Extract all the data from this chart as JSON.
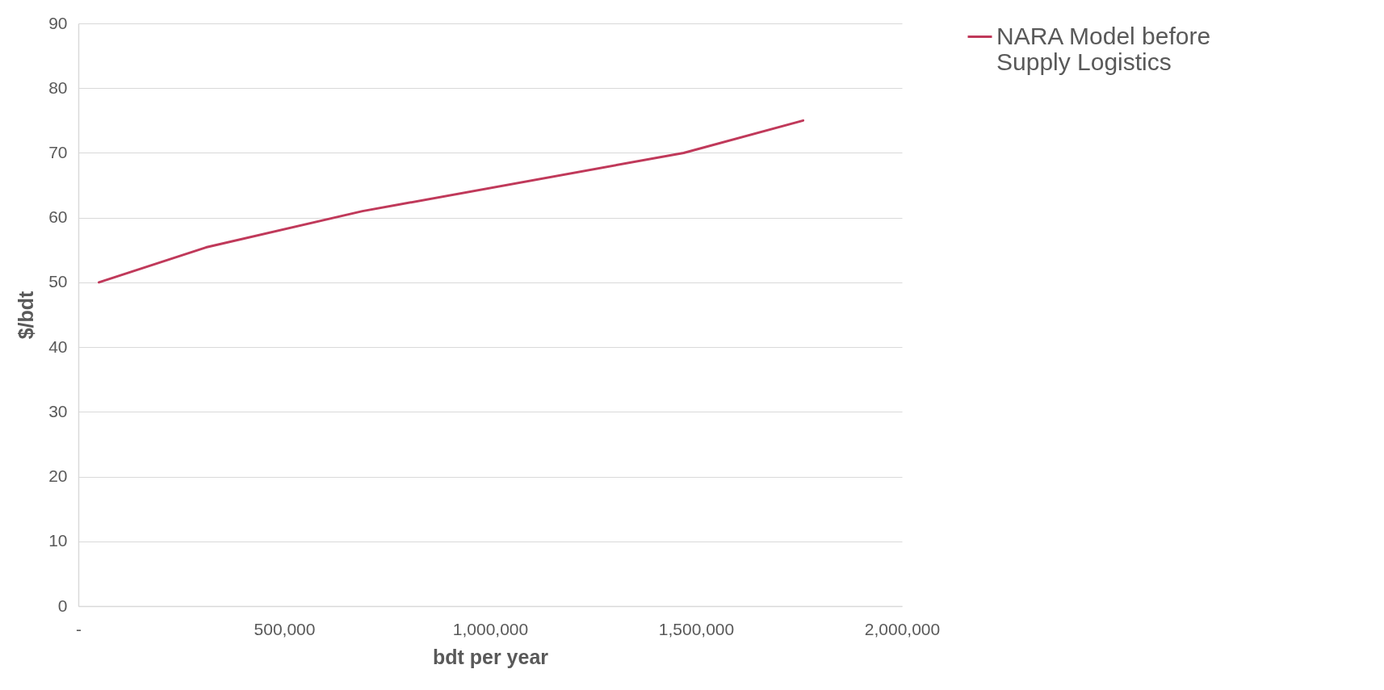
{
  "chart_data": {
    "type": "line",
    "xlabel": "bdt per year",
    "ylabel": "$/bdt",
    "x": [
      50000,
      310000,
      690000,
      1470000,
      1760000
    ],
    "series": [
      {
        "name": "NARA Model before Supply Logistics",
        "color": "#c0395a",
        "values": [
          50,
          55.4,
          61,
          70,
          75
        ]
      }
    ],
    "xlim": [
      0,
      2000000
    ],
    "xticks": [
      {
        "value": 0,
        "label": "-"
      },
      {
        "value": 500000,
        "label": "500,000"
      },
      {
        "value": 1000000,
        "label": "1,000,000"
      },
      {
        "value": 1500000,
        "label": "1,500,000"
      },
      {
        "value": 2000000,
        "label": "2,000,000"
      }
    ],
    "ylim": [
      0,
      90
    ],
    "yticks": [
      0,
      10,
      20,
      30,
      40,
      50,
      60,
      70,
      80,
      90
    ],
    "grid": "y",
    "legend": "right",
    "marker": "none",
    "line_style": "solid"
  }
}
